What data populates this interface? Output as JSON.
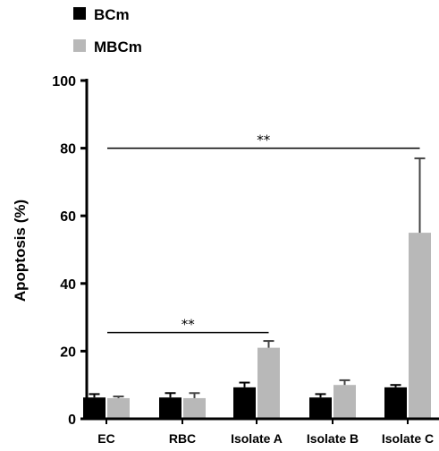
{
  "chart_data": {
    "type": "bar",
    "categories": [
      "EC",
      "RBC",
      "Isolate A",
      "Isolate B",
      "Isolate C"
    ],
    "series": [
      {
        "name": "BCm",
        "color": "#000000",
        "values": [
          6.3,
          6.3,
          9.3,
          6.3,
          9.3
        ],
        "errors": [
          1.0,
          1.3,
          1.4,
          1.0,
          0.7
        ]
      },
      {
        "name": "MBCm",
        "color": "#b8b8b8",
        "values": [
          6.1,
          6.1,
          21.0,
          10.0,
          55.0
        ],
        "errors": [
          0.5,
          1.5,
          2.0,
          1.4,
          22.0
        ]
      }
    ],
    "ylabel": "Apoptosis (%)",
    "ylim": [
      0,
      100
    ],
    "yticks": [
      0,
      20,
      40,
      60,
      80,
      100
    ],
    "legend_position": "top-left",
    "grid": false,
    "significance": [
      {
        "label": "**",
        "from_category": "EC",
        "to_category": "Isolate A",
        "y": 25.5
      },
      {
        "label": "**",
        "from_category": "EC",
        "to_category": "Isolate C",
        "y": 80
      }
    ]
  }
}
